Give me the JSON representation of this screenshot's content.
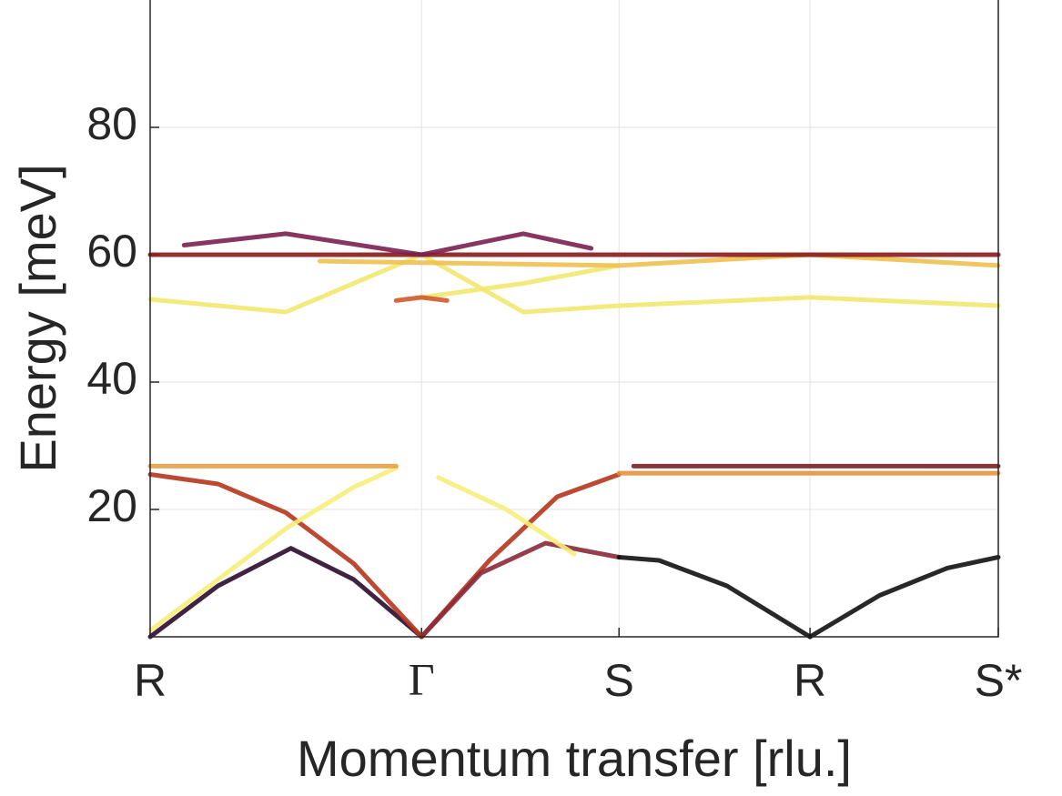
{
  "chart_data": {
    "type": "line",
    "xlabel": "Momentum transfer [rlu.]",
    "ylabel": "Energy [meV]",
    "xlim": [
      0,
      5
    ],
    "ylim": [
      0,
      100
    ],
    "xticks": [
      {
        "value": 0,
        "label": "R"
      },
      {
        "value": 1.6,
        "label": "Γ"
      },
      {
        "value": 2.764,
        "label": "S"
      },
      {
        "value": 3.89,
        "label": "R"
      },
      {
        "value": 5,
        "label": "S*"
      }
    ],
    "yticks": [
      20,
      40,
      60,
      80
    ],
    "grid": true,
    "series": [
      {
        "color": "#2b0b2e",
        "x": [
          0,
          0.4,
          0.83,
          1.2,
          1.6
        ],
        "values": [
          0,
          8,
          13.9,
          9,
          0
        ]
      },
      {
        "color": "#b5361c",
        "x": [
          0,
          0.4,
          0.8,
          1.2,
          1.6
        ],
        "values": [
          25.5,
          24,
          19.5,
          11.5,
          0
        ]
      },
      {
        "color": "#f5ee7a",
        "x": [
          0,
          0.4,
          0.8,
          1.2,
          1.45
        ],
        "values": [
          1,
          9,
          17,
          23.5,
          26.5
        ]
      },
      {
        "color": "#e8a040",
        "x": [
          0,
          1.45
        ],
        "values": [
          26.8,
          26.8
        ]
      },
      {
        "color": "#b5361c",
        "x": [
          1.6,
          2.0,
          2.4,
          2.764
        ],
        "values": [
          0,
          12,
          22,
          25.5
        ]
      },
      {
        "color": "#8a2a3a",
        "x": [
          1.6,
          1.95,
          2.33,
          2.764
        ],
        "values": [
          0,
          10,
          14.7,
          12.5
        ]
      },
      {
        "color": "#f5ee7a",
        "x": [
          1.7,
          2.1,
          2.5
        ],
        "values": [
          25,
          20,
          13
        ]
      },
      {
        "color": "#111111",
        "x": [
          2.764,
          3.0,
          3.4,
          3.89
        ],
        "values": [
          12.5,
          12,
          8,
          0
        ]
      },
      {
        "color": "#e8903a",
        "x": [
          2.764,
          5
        ],
        "values": [
          25.7,
          25.7
        ]
      },
      {
        "color": "#7a1f2a",
        "x": [
          2.85,
          5
        ],
        "values": [
          26.8,
          26.8
        ]
      },
      {
        "color": "#111111",
        "x": [
          3.89,
          4.3,
          4.7,
          5
        ],
        "values": [
          0,
          6.5,
          10.8,
          12.5
        ]
      },
      {
        "color": "#f2e870",
        "x": [
          0,
          0.8,
          1.6
        ],
        "values": [
          53,
          51,
          60
        ]
      },
      {
        "color": "#f2e870",
        "x": [
          1.6,
          2.2,
          2.764,
          3.89,
          5
        ],
        "values": [
          60,
          51,
          52,
          53.3,
          52
        ]
      },
      {
        "color": "#f2e870",
        "x": [
          1.6,
          2.2,
          2.764
        ],
        "values": [
          53.3,
          55.5,
          58.3
        ]
      },
      {
        "color": "#f0c050",
        "x": [
          1.0,
          2.764,
          3.89,
          5
        ],
        "values": [
          59,
          58.3,
          60,
          58.3
        ]
      },
      {
        "color": "#8b1a1a",
        "x": [
          0,
          5
        ],
        "values": [
          60,
          60
        ]
      },
      {
        "color": "#7a2050",
        "x": [
          0.2,
          0.8,
          1.6
        ],
        "values": [
          61.5,
          63.3,
          60
        ]
      },
      {
        "color": "#7a2050",
        "x": [
          1.6,
          2.2,
          2.6
        ],
        "values": [
          60,
          63.3,
          61
        ]
      },
      {
        "color": "#d05a2a",
        "x": [
          1.45,
          1.6,
          1.75
        ],
        "values": [
          52.8,
          53.3,
          52.8
        ]
      }
    ]
  }
}
